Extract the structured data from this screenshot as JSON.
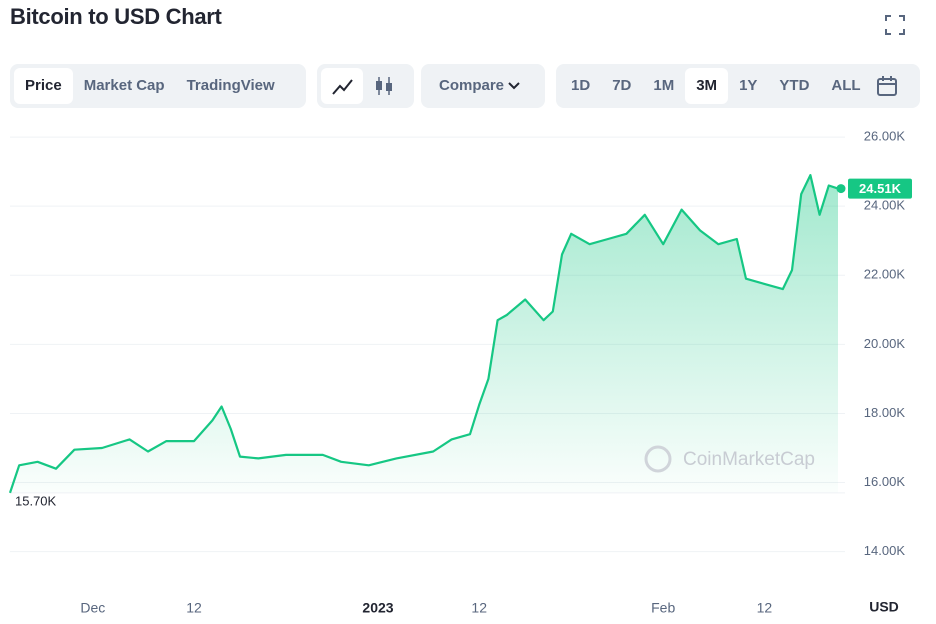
{
  "header": {
    "title": "Bitcoin to USD Chart",
    "tabs": [
      "Price",
      "Market Cap",
      "TradingView"
    ],
    "compare": "Compare",
    "ranges": [
      "1D",
      "7D",
      "1M",
      "3M",
      "1Y",
      "YTD",
      "ALL"
    ]
  },
  "chart_data": {
    "type": "line",
    "color": "#16c784",
    "grid": true,
    "watermark": "CoinMarketCap",
    "y_axis_unit": "USD",
    "x": [
      0,
      1,
      3,
      5,
      7,
      10,
      13,
      15,
      17,
      20,
      22,
      23,
      24,
      25,
      27,
      30,
      34,
      36,
      39,
      42,
      46,
      48,
      50,
      51,
      52,
      53,
      54,
      56,
      58,
      59,
      60,
      61,
      63,
      65,
      67,
      69,
      71,
      73,
      75,
      77,
      79,
      80,
      82,
      84,
      85,
      86,
      87,
      88,
      89,
      90
    ],
    "values": [
      15700,
      16500,
      16600,
      16400,
      16950,
      17000,
      17250,
      16900,
      17200,
      17200,
      17800,
      18200,
      17550,
      16750,
      16700,
      16800,
      16800,
      16600,
      16500,
      16700,
      16900,
      17250,
      17400,
      18250,
      19000,
      20700,
      20850,
      21300,
      20700,
      20950,
      22600,
      23200,
      22900,
      23050,
      23200,
      23750,
      22900,
      23900,
      23300,
      22900,
      23050,
      21900,
      21750,
      21600,
      22150,
      24350,
      24900,
      23750,
      24600,
      24510
    ],
    "xlim": [
      0,
      90
    ],
    "xticks": [
      {
        "value": 9,
        "label": "Dec"
      },
      {
        "value": 20,
        "label": "12"
      },
      {
        "value": 40,
        "label": "2023"
      },
      {
        "value": 51,
        "label": "12"
      },
      {
        "value": 71,
        "label": "Feb"
      },
      {
        "value": 82,
        "label": "12"
      }
    ],
    "ylim": [
      12600,
      26350
    ],
    "yticks": [
      {
        "value": 14000,
        "label": "14.00K"
      },
      {
        "value": 16000,
        "label": "16.00K"
      },
      {
        "value": 18000,
        "label": "18.00K"
      },
      {
        "value": 20000,
        "label": "20.00K"
      },
      {
        "value": 22000,
        "label": "22.00K"
      },
      {
        "value": 24000,
        "label": "24.00K"
      },
      {
        "value": 26000,
        "label": "26.00K"
      }
    ],
    "min_label": {
      "value": 15700,
      "label": "15.70K"
    },
    "last_label": {
      "value": 24510,
      "label": "24.51K"
    }
  }
}
